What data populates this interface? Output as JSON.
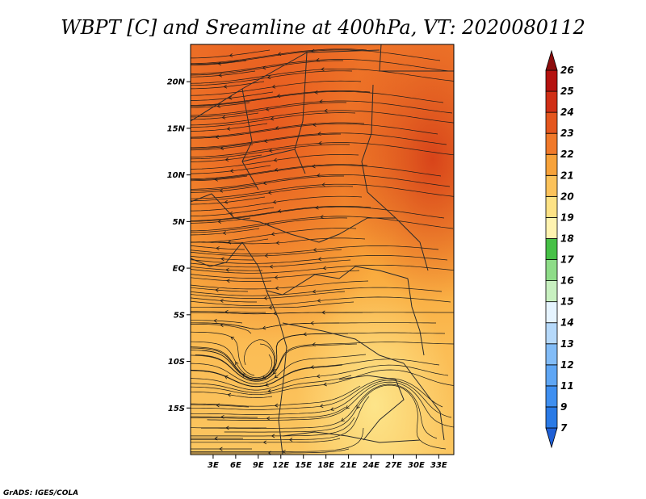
{
  "title": "WBPT [C] and Sreamline at 400hPa, VT: 2020080112",
  "credit": "GrADS: IGES/COLA",
  "map": {
    "lon_range": [
      0,
      35
    ],
    "lat_range": [
      -20,
      24
    ],
    "lon_ticks": [
      {
        "value": 3,
        "label": "3E"
      },
      {
        "value": 6,
        "label": "6E"
      },
      {
        "value": 9,
        "label": "9E"
      },
      {
        "value": 12,
        "label": "12E"
      },
      {
        "value": 15,
        "label": "15E"
      },
      {
        "value": 18,
        "label": "18E"
      },
      {
        "value": 21,
        "label": "21E"
      },
      {
        "value": 24,
        "label": "24E"
      },
      {
        "value": 27,
        "label": "27E"
      },
      {
        "value": 30,
        "label": "30E"
      },
      {
        "value": 33,
        "label": "33E"
      }
    ],
    "lat_ticks": [
      {
        "value": 20,
        "label": "20N"
      },
      {
        "value": 15,
        "label": "15N"
      },
      {
        "value": 10,
        "label": "10N"
      },
      {
        "value": 5,
        "label": "5N"
      },
      {
        "value": 0,
        "label": "EQ"
      },
      {
        "value": -5,
        "label": "5S"
      },
      {
        "value": -10,
        "label": "10S"
      },
      {
        "value": -15,
        "label": "15S"
      }
    ]
  },
  "colorbar": {
    "levels": [
      "7",
      "9",
      "11",
      "12",
      "13",
      "14",
      "15",
      "16",
      "17",
      "18",
      "19",
      "20",
      "21",
      "22",
      "23",
      "24",
      "25",
      "26"
    ],
    "colors": [
      "#1e5fd6",
      "#2a7ae6",
      "#3f8ff0",
      "#5fa6f4",
      "#82bcf7",
      "#b6d9fa",
      "#e6f4ff",
      "#c8f0c0",
      "#8edc88",
      "#46c046",
      "#fff3b0",
      "#fde285",
      "#fbc25b",
      "#f7a23a",
      "#f0792a",
      "#e4561e",
      "#d02f16",
      "#b5120f",
      "#8c0c0c"
    ]
  }
}
